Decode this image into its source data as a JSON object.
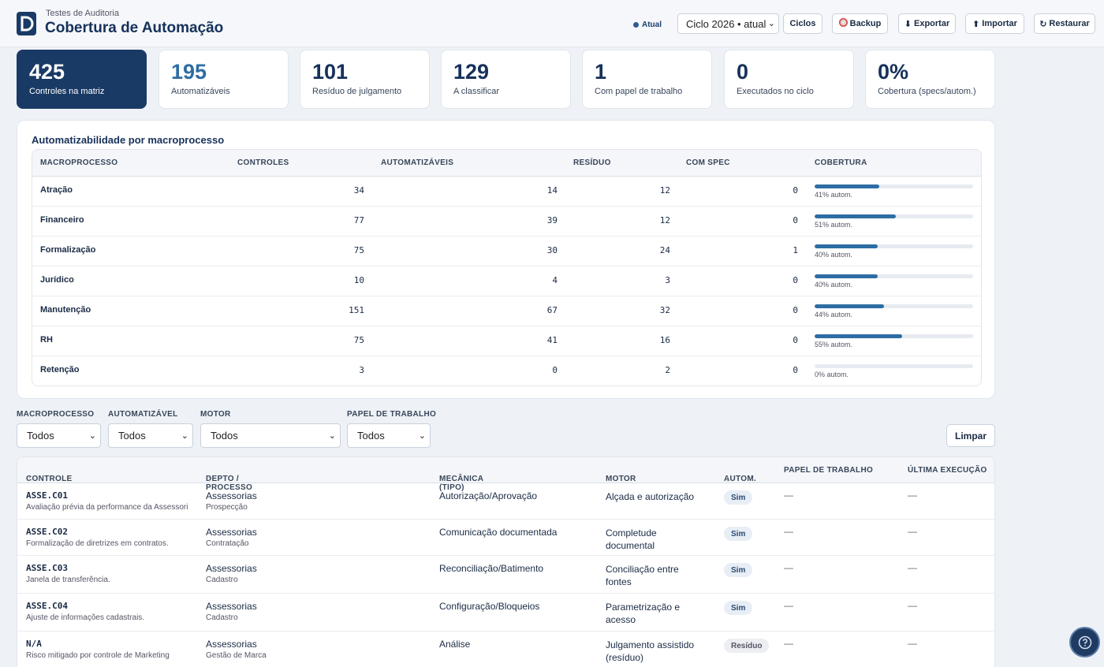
{
  "header": {
    "subtitle": "Testes de Auditoria",
    "title": "Cobertura de Automação",
    "status_badge": "Atual",
    "cycle_select": "Ciclo 2026 • atual",
    "buttons": {
      "ciclos": "Ciclos",
      "backup": "Backup",
      "exportar": "Exportar",
      "importar": "Importar",
      "restaurar": "Restaurar"
    },
    "icons": {
      "backup": "lifebuoy-icon",
      "exportar": "download-arrow-icon",
      "importar": "upload-arrow-icon",
      "restaurar": "refresh-icon"
    }
  },
  "kpis": [
    {
      "value": "425",
      "label": "Controles na matriz"
    },
    {
      "value": "195",
      "label": "Automatizáveis"
    },
    {
      "value": "101",
      "label": "Resíduo de julgamento"
    },
    {
      "value": "129",
      "label": "A classificar"
    },
    {
      "value": "1",
      "label": "Com papel de trabalho"
    },
    {
      "value": "0",
      "label": "Executados no ciclo"
    },
    {
      "value": "0%",
      "label": "Cobertura (specs/autom.)"
    }
  ],
  "macro": {
    "title": "Automatizabilidade por macroprocesso",
    "headers": {
      "macroprocesso": "MACROPROCESSO",
      "controles": "CONTROLES",
      "automatizaveis": "AUTOMATIZÁVEIS",
      "residuo": "RESÍDUO",
      "com_spec": "COM SPEC",
      "cobertura": "COBERTURA"
    },
    "rows": [
      {
        "name": "Atração",
        "controles": "34",
        "automatizaveis": "14",
        "residuo": "12",
        "com_spec": "0",
        "coverage": 0.41,
        "coverage_label": "41% autom."
      },
      {
        "name": "Financeiro",
        "controles": "77",
        "automatizaveis": "39",
        "residuo": "12",
        "com_spec": "0",
        "coverage": 0.51,
        "coverage_label": "51% autom."
      },
      {
        "name": "Formalização",
        "controles": "75",
        "automatizaveis": "30",
        "residuo": "24",
        "com_spec": "1",
        "coverage": 0.4,
        "coverage_label": "40% autom."
      },
      {
        "name": "Jurídico",
        "controles": "10",
        "automatizaveis": "4",
        "residuo": "3",
        "com_spec": "0",
        "coverage": 0.4,
        "coverage_label": "40% autom."
      },
      {
        "name": "Manutenção",
        "controles": "151",
        "automatizaveis": "67",
        "residuo": "32",
        "com_spec": "0",
        "coverage": 0.44,
        "coverage_label": "44% autom."
      },
      {
        "name": "RH",
        "controles": "75",
        "automatizaveis": "41",
        "residuo": "16",
        "com_spec": "0",
        "coverage": 0.55,
        "coverage_label": "55% autom."
      },
      {
        "name": "Retenção",
        "controles": "3",
        "automatizaveis": "0",
        "residuo": "2",
        "com_spec": "0",
        "coverage": 0.0,
        "coverage_label": "0% autom."
      }
    ]
  },
  "filters": {
    "macroprocesso": {
      "label": "MACROPROCESSO",
      "value": "Todos"
    },
    "automatizavel": {
      "label": "AUTOMATIZÁVEL",
      "value": "Todos"
    },
    "motor": {
      "label": "MOTOR",
      "value": "Todos"
    },
    "papel": {
      "label": "PAPEL DE TRABALHO",
      "value": "Todos"
    },
    "clear_label": "Limpar"
  },
  "controls": {
    "headers": {
      "controle": "CONTROLE",
      "depto": "DEPTO / PROCESSO",
      "mecanica": "MECÂNICA (TIPO)",
      "motor": "MOTOR",
      "autom": "AUTOM.",
      "papel": "PAPEL DE TRABALHO",
      "ultima": "ÚLTIMA EXECUÇÃO",
      "sort_glyph": "↕"
    },
    "rows": [
      {
        "code": "ASSE.C01",
        "desc": "Avaliação prévia da performance da Assessori",
        "depto": "Assessorias",
        "processo": "Prospecção",
        "mecanica": "Autorização/Aprovação",
        "motor": "Alçada e autorização",
        "autom": "Sim",
        "papel": "—",
        "ultima": "—"
      },
      {
        "code": "ASSE.C02",
        "desc": "Formalização de diretrizes em contratos.",
        "depto": "Assessorias",
        "processo": "Contratação",
        "mecanica": "Comunicação documentada",
        "motor": "Completude documental",
        "autom": "Sim",
        "papel": "—",
        "ultima": "—"
      },
      {
        "code": "ASSE.C03",
        "desc": "Janela de transferência.",
        "depto": "Assessorias",
        "processo": "Cadastro",
        "mecanica": "Reconciliação/Batimento",
        "motor": "Conciliação entre fontes",
        "autom": "Sim",
        "papel": "—",
        "ultima": "—"
      },
      {
        "code": "ASSE.C04",
        "desc": "Ajuste de informações cadastrais.",
        "depto": "Assessorias",
        "processo": "Cadastro",
        "mecanica": "Configuração/Bloqueios",
        "motor": "Parametrização e acesso",
        "autom": "Sim",
        "papel": "—",
        "ultima": "—"
      },
      {
        "code": "N/A",
        "desc": "Risco mitigado por controle de Marketing",
        "depto": "Assessorias",
        "processo": "Gestão de Marca",
        "mecanica": "Análise",
        "motor": "Julgamento assistido (resíduo)",
        "autom": "Resíduo",
        "papel": "—",
        "ultima": "—"
      }
    ]
  },
  "colors": {
    "brand": "#1a3a66",
    "accent": "#2e6da4",
    "background": "#eef2f6"
  }
}
